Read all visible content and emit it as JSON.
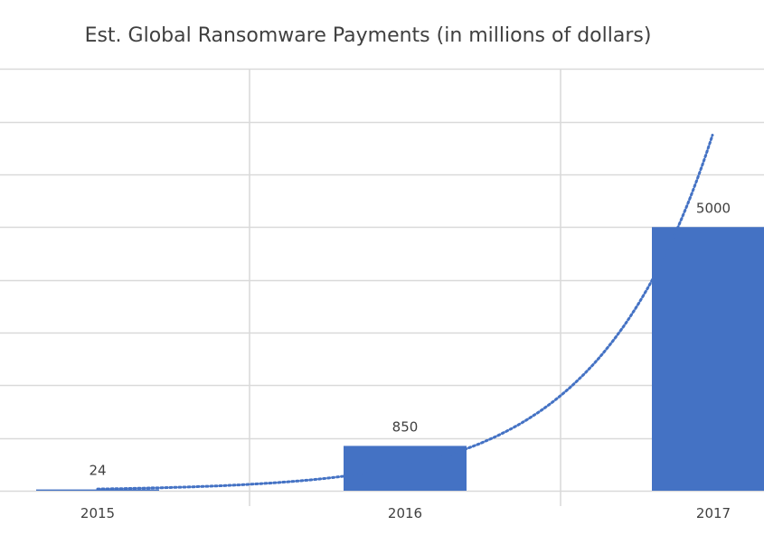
{
  "chart_data": {
    "type": "bar",
    "title": "Est. Global Ransomware Payments (in millions of dollars)",
    "categories": [
      "2015",
      "2016",
      "2017"
    ],
    "series": [
      {
        "values": [
          24,
          850,
          5000
        ],
        "color": "#4472C4"
      }
    ],
    "data_labels": [
      "24",
      "850",
      "5000"
    ],
    "trendline": {
      "type": "exponential",
      "style": "dotted",
      "color": "#4472C4"
    },
    "xlabel": "",
    "ylabel": "",
    "ylim": [
      0,
      8000
    ],
    "y_gridline_step": 1000,
    "grid": true,
    "legend": false
  }
}
